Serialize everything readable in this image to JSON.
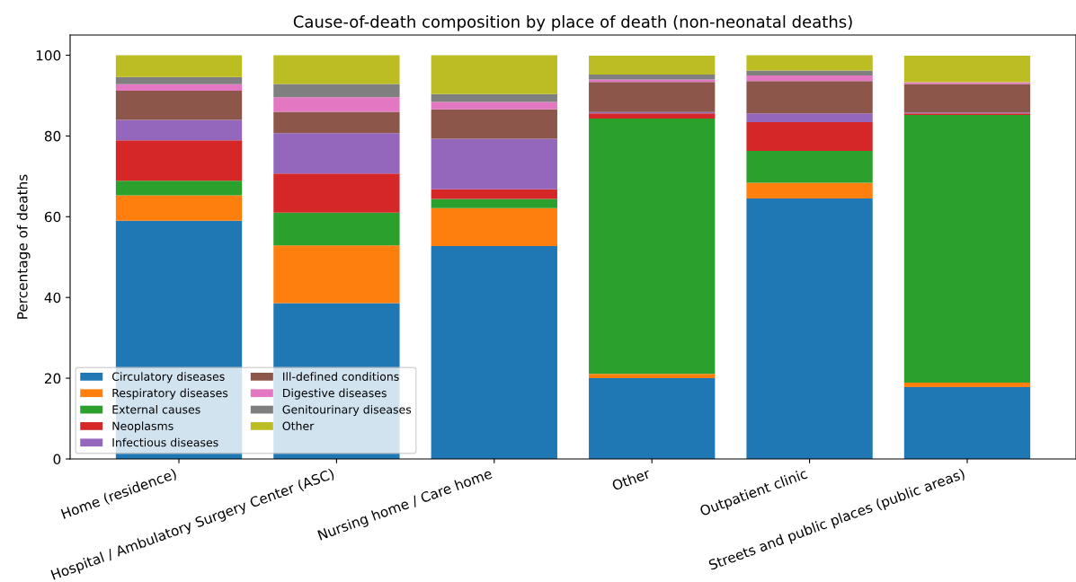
{
  "chart_data": {
    "type": "bar",
    "stacked": true,
    "title": "Cause-of-death composition by place of death (non-neonatal deaths)",
    "ylabel": "Percentage of deaths",
    "categories": [
      "Home (residence)",
      "Hospital / Ambulatory Surgery Center (ASC)",
      "Nursing home / Care home",
      "Other",
      "Outpatient clinic",
      "Streets and public places (public areas)"
    ],
    "series": [
      {
        "name": "Circulatory diseases",
        "color": "#1f77b4",
        "values": [
          59.0,
          38.6,
          52.7,
          20.0,
          64.5,
          17.8
        ]
      },
      {
        "name": "Respiratory diseases",
        "color": "#ff7f0e",
        "values": [
          6.3,
          14.3,
          9.4,
          1.1,
          3.9,
          1.1
        ]
      },
      {
        "name": "External causes",
        "color": "#2ca02c",
        "values": [
          3.6,
          8.1,
          2.3,
          63.2,
          7.9,
          66.3
        ]
      },
      {
        "name": "Neoplasms",
        "color": "#d62728",
        "values": [
          10.0,
          9.7,
          2.4,
          1.3,
          7.1,
          0.4
        ]
      },
      {
        "name": "Infectious diseases",
        "color": "#9467bd",
        "values": [
          5.1,
          10.0,
          12.5,
          0.3,
          2.2,
          0.2
        ]
      },
      {
        "name": "Ill-defined conditions",
        "color": "#8c564b",
        "values": [
          7.2,
          5.3,
          7.3,
          7.5,
          8.0,
          7.1
        ]
      },
      {
        "name": "Digestive diseases",
        "color": "#e377c2",
        "values": [
          1.6,
          3.6,
          1.8,
          0.6,
          1.4,
          0.4
        ]
      },
      {
        "name": "Genitourinary diseases",
        "color": "#7f7f7f",
        "values": [
          1.8,
          3.3,
          2.0,
          1.2,
          1.2,
          null
        ]
      },
      {
        "name": "Other",
        "color": "#bcbd22",
        "values": [
          5.4,
          7.1,
          9.6,
          4.7,
          3.8,
          6.6
        ]
      }
    ],
    "ylim": [
      0,
      105
    ],
    "yticks": [
      0,
      20,
      40,
      60,
      80,
      100
    ],
    "grid": false,
    "legend": "bottom left"
  }
}
